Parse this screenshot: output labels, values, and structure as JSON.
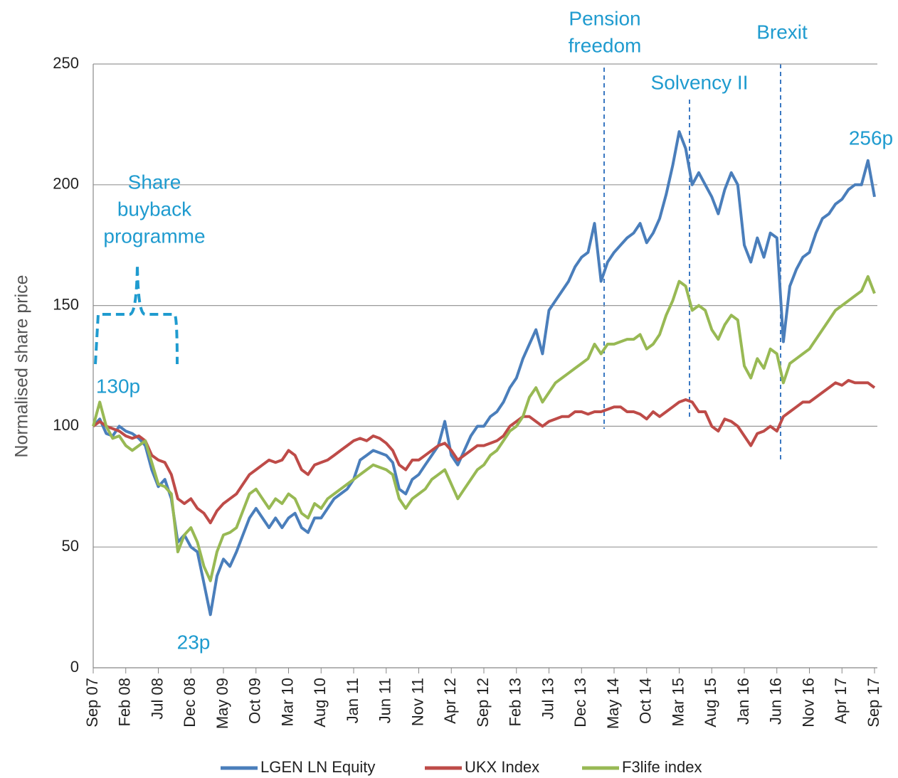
{
  "chart_data": {
    "type": "line",
    "y_axis_label": "Normalised share price",
    "categories": [
      "Sep 07",
      null,
      null,
      null,
      null,
      "Feb 08",
      null,
      null,
      null,
      null,
      "Jul 08",
      null,
      null,
      null,
      null,
      "Dec 08",
      null,
      null,
      null,
      null,
      "May 09",
      null,
      null,
      null,
      null,
      "Oct 09",
      null,
      null,
      null,
      null,
      "Mar 10",
      null,
      null,
      null,
      null,
      "Aug 10",
      null,
      null,
      null,
      null,
      "Jan 11",
      null,
      null,
      null,
      null,
      "Jun 11",
      null,
      null,
      null,
      null,
      "Nov 11",
      null,
      null,
      null,
      null,
      "Apr 12",
      null,
      null,
      null,
      null,
      "Sep 12",
      null,
      null,
      null,
      null,
      "Feb 13",
      null,
      null,
      null,
      null,
      "Jul 13",
      null,
      null,
      null,
      null,
      "Dec 13",
      null,
      null,
      null,
      null,
      "May 14",
      null,
      null,
      null,
      null,
      "Oct 14",
      null,
      null,
      null,
      null,
      "Mar 15",
      null,
      null,
      null,
      null,
      "Aug 15",
      null,
      null,
      null,
      null,
      "Jan 16",
      null,
      null,
      null,
      null,
      "Jun 16",
      null,
      null,
      null,
      null,
      "Nov 16",
      null,
      null,
      null,
      null,
      "Apr 17",
      null,
      null,
      null,
      null,
      "Sep 17"
    ],
    "series": [
      {
        "name": "LGEN LN Equity",
        "color": "#4a7ebb",
        "values": [
          100,
          103,
          97,
          96,
          100,
          98,
          97,
          95,
          92,
          82,
          75,
          78,
          70,
          52,
          55,
          50,
          48,
          35,
          22,
          38,
          45,
          42,
          48,
          55,
          62,
          66,
          62,
          58,
          62,
          58,
          62,
          64,
          58,
          56,
          62,
          62,
          66,
          70,
          72,
          74,
          78,
          86,
          88,
          90,
          89,
          88,
          85,
          74,
          72,
          78,
          80,
          84,
          88,
          92,
          102,
          88,
          84,
          90,
          96,
          100,
          100,
          104,
          106,
          110,
          116,
          120,
          128,
          134,
          140,
          130,
          148,
          152,
          156,
          160,
          166,
          170,
          172,
          184,
          160,
          168,
          172,
          175,
          178,
          180,
          184,
          176,
          180,
          186,
          196,
          208,
          222,
          215,
          200,
          205,
          200,
          195,
          188,
          198,
          205,
          200,
          175,
          168,
          178,
          170,
          180,
          178,
          135,
          158,
          165,
          170,
          172,
          180,
          186,
          188,
          192,
          194,
          198,
          200,
          200,
          210,
          195
        ]
      },
      {
        "name": "UKX Index",
        "color": "#be4b48",
        "values": [
          100,
          102,
          100,
          99,
          98,
          96,
          95,
          96,
          94,
          88,
          86,
          85,
          80,
          70,
          68,
          70,
          66,
          64,
          60,
          65,
          68,
          70,
          72,
          76,
          80,
          82,
          84,
          86,
          85,
          86,
          90,
          88,
          82,
          80,
          84,
          85,
          86,
          88,
          90,
          92,
          94,
          95,
          94,
          96,
          95,
          93,
          90,
          84,
          82,
          86,
          86,
          88,
          90,
          92,
          93,
          90,
          86,
          88,
          90,
          92,
          92,
          93,
          94,
          96,
          100,
          102,
          104,
          104,
          102,
          100,
          102,
          103,
          104,
          104,
          106,
          106,
          105,
          106,
          106,
          107,
          108,
          108,
          106,
          106,
          105,
          103,
          106,
          104,
          106,
          108,
          110,
          111,
          110,
          106,
          106,
          100,
          98,
          103,
          102,
          100,
          96,
          92,
          97,
          98,
          100,
          98,
          104,
          106,
          108,
          110,
          110,
          112,
          114,
          116,
          118,
          117,
          119,
          118,
          118,
          118,
          116
        ]
      },
      {
        "name": "F3life index",
        "color": "#98b954",
        "values": [
          100,
          110,
          100,
          95,
          96,
          92,
          90,
          92,
          94,
          85,
          76,
          75,
          72,
          48,
          55,
          58,
          52,
          42,
          36,
          48,
          55,
          56,
          58,
          65,
          72,
          74,
          70,
          66,
          70,
          68,
          72,
          70,
          64,
          62,
          68,
          66,
          70,
          72,
          74,
          76,
          78,
          80,
          82,
          84,
          83,
          82,
          80,
          70,
          66,
          70,
          72,
          74,
          78,
          80,
          82,
          76,
          70,
          74,
          78,
          82,
          84,
          88,
          90,
          94,
          98,
          100,
          104,
          112,
          116,
          110,
          114,
          118,
          120,
          122,
          124,
          126,
          128,
          134,
          130,
          134,
          134,
          135,
          136,
          136,
          138,
          132,
          134,
          138,
          146,
          152,
          160,
          158,
          148,
          150,
          148,
          140,
          136,
          142,
          146,
          144,
          125,
          120,
          128,
          124,
          132,
          130,
          118,
          126,
          128,
          130,
          132,
          136,
          140,
          144,
          148,
          150,
          152,
          154,
          156,
          162,
          155
        ]
      }
    ],
    "ylim": [
      0,
      250
    ],
    "yticks": [
      0,
      50,
      100,
      150,
      200,
      250
    ],
    "grid": true,
    "legend": "bottom",
    "annotations": [
      {
        "text": [
          "Pension",
          "freedom"
        ]
      },
      {
        "text": [
          "Solvency II"
        ]
      },
      {
        "text": [
          "Brexit"
        ]
      },
      {
        "text": [
          "Share",
          "buyback",
          "programme"
        ]
      },
      {
        "text": [
          "130p"
        ]
      },
      {
        "text": [
          "23p"
        ]
      },
      {
        "text": [
          "256p"
        ]
      }
    ]
  }
}
